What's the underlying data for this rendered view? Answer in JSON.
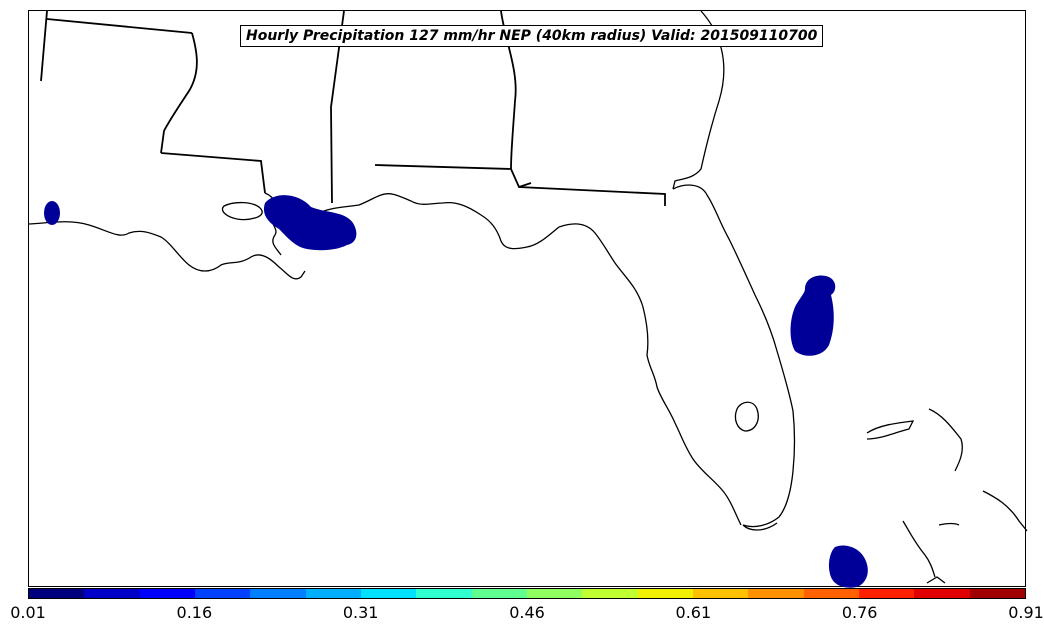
{
  "map": {
    "title": "Hourly Precipitation 127 mm/hr NEP (40km radius) Valid: 201509110700",
    "region": "Gulf Coast and Florida",
    "precip_color": "#000099",
    "coast_color": "#000000"
  },
  "colorbar": {
    "colors": [
      "#00007f",
      "#0000c8",
      "#0000ff",
      "#0040ff",
      "#0080ff",
      "#00b0ff",
      "#00e0ff",
      "#30ffd0",
      "#60ff90",
      "#90ff60",
      "#c0ff30",
      "#f0f000",
      "#ffc000",
      "#ff9000",
      "#ff6000",
      "#ff2000",
      "#e00000",
      "#a00000"
    ],
    "tick_labels": [
      "0.01",
      "0.16",
      "0.31",
      "0.46",
      "0.61",
      "0.76",
      "0.91"
    ]
  }
}
